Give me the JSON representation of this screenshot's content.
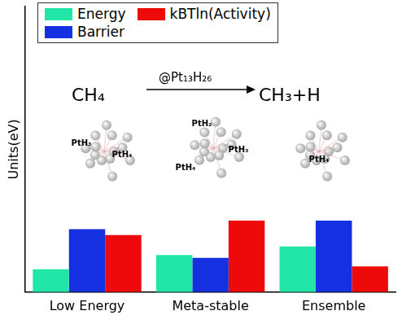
{
  "chart_data": {
    "type": "bar",
    "y_label": "Units(eV)",
    "categories": [
      "Low Energy",
      "Meta-stable",
      "Ensemble"
    ],
    "series": [
      {
        "name": "Energy",
        "color": "#22e6a8",
        "values": [
          0.08,
          0.13,
          0.16
        ]
      },
      {
        "name": "Barrier",
        "color": "#1530e0",
        "values": [
          0.22,
          0.12,
          0.25
        ]
      },
      {
        "name": "kBTln(Activity)",
        "color": "#ee0a0a",
        "values": [
          0.2,
          0.25,
          0.09
        ]
      }
    ],
    "annotations": [
      "CH₄",
      "@Pt₁₃H₂₆",
      "CH₃+H",
      "PtH₃",
      "PtH₄",
      "PtH₂",
      "PtH₃",
      "PtH₄",
      "PtH₄"
    ],
    "ylim": [
      0,
      1
    ],
    "tick_labels": "x",
    "grid": false,
    "legend": "top-left"
  }
}
